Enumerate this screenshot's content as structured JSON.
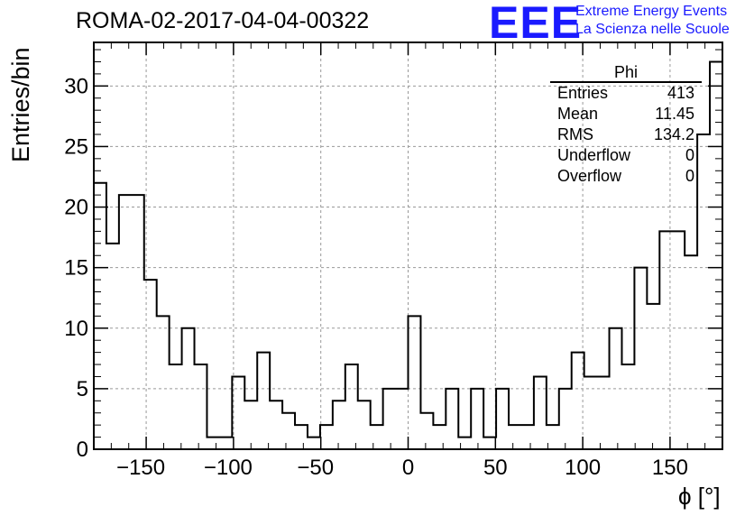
{
  "chart_data": {
    "type": "histogram",
    "title": "ROMA-02-2017-04-04-00322",
    "xlabel": "ϕ [°]",
    "ylabel": "Entries/bin",
    "xlim": [
      -180,
      180
    ],
    "ylim": [
      0,
      33.6
    ],
    "grid": true,
    "bin_width": 7.2,
    "x_ticks": [
      -150,
      -100,
      -50,
      0,
      50,
      100,
      150
    ],
    "y_ticks": [
      0,
      5,
      10,
      15,
      20,
      25,
      30
    ],
    "x": [
      -176.4,
      -169.2,
      -162,
      -154.8,
      -147.6,
      -140.4,
      -133.2,
      -126,
      -118.8,
      -111.6,
      -104.4,
      -97.2,
      -90,
      -82.8,
      -75.6,
      -68.4,
      -61.2,
      -54,
      -46.8,
      -39.6,
      -32.4,
      -25.2,
      -18,
      -10.8,
      -3.6,
      3.6,
      10.8,
      18,
      25.2,
      32.4,
      39.6,
      46.8,
      54,
      61.2,
      68.4,
      75.6,
      82.8,
      90,
      97.2,
      104.4,
      111.6,
      118.8,
      126,
      133.2,
      140.4,
      147.6,
      154.8,
      162,
      169.2,
      176.4
    ],
    "values": [
      22,
      17,
      21,
      21,
      14,
      11,
      7,
      10,
      7,
      1,
      1,
      6,
      4,
      8,
      4,
      3,
      2,
      1,
      2,
      4,
      7,
      4,
      2,
      5,
      5,
      11,
      3,
      2,
      5,
      1,
      5,
      1,
      5,
      2,
      2,
      6,
      2,
      5,
      8,
      6,
      6,
      10,
      7,
      15,
      12,
      18,
      18,
      16,
      26,
      32
    ]
  },
  "stats_box": {
    "name": "Phi",
    "rows": [
      {
        "label": "Entries",
        "value": "413"
      },
      {
        "label": "Mean",
        "value": "11.45"
      },
      {
        "label": "RMS",
        "value": "134.2"
      },
      {
        "label": "Underflow",
        "value": "0"
      },
      {
        "label": "Overflow",
        "value": "0"
      }
    ]
  },
  "logo": {
    "mark": "EEE",
    "line1": "Extreme Energy Events",
    "line2": "La Scienza nelle Scuole"
  },
  "colors": {
    "logo": "#1a1aff",
    "line": "#000000",
    "grid": "#999999"
  }
}
